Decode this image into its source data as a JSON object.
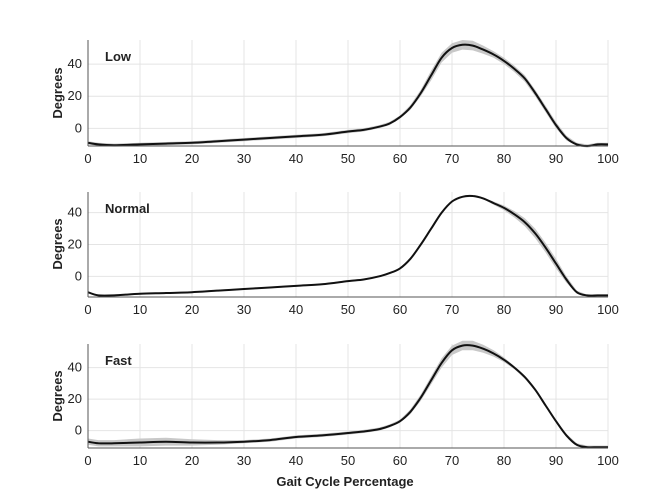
{
  "figure": {
    "xlabel": "Gait Cycle Percentage"
  },
  "chart_data": [
    {
      "type": "line",
      "title": "Low",
      "xlabel": "",
      "ylabel": "Degrees",
      "xlim": [
        0,
        100
      ],
      "ylim": [
        -11,
        55
      ],
      "grid": true,
      "xticks": [
        0,
        10,
        20,
        30,
        40,
        50,
        60,
        70,
        80,
        90,
        100
      ],
      "yticks": [
        0,
        20,
        40
      ],
      "series": [
        {
          "x": [
            0,
            2,
            5,
            10,
            15,
            20,
            25,
            30,
            35,
            40,
            45,
            50,
            53,
            56,
            58,
            60,
            62,
            64,
            66,
            68,
            70,
            72,
            74,
            76,
            78,
            80,
            82,
            84,
            86,
            88,
            90,
            92,
            94,
            96,
            98,
            100
          ],
          "y": [
            -9,
            -10,
            -10.5,
            -10,
            -9.5,
            -9,
            -8,
            -7,
            -6,
            -5,
            -4,
            -2,
            -1,
            1,
            3,
            7,
            13,
            22,
            33,
            44,
            50,
            52,
            51.5,
            49,
            46,
            42,
            37,
            31,
            22,
            12,
            2,
            -6,
            -10,
            -11,
            -10,
            -10
          ],
          "band": [
            1,
            1,
            1,
            1,
            1,
            1,
            1,
            1,
            1,
            1,
            1,
            1,
            1,
            1,
            1,
            1,
            1.5,
            2,
            3,
            3,
            3,
            3,
            3,
            2.5,
            2,
            2,
            2,
            2,
            2,
            2,
            2,
            1.5,
            1,
            1,
            1,
            1
          ]
        }
      ]
    },
    {
      "type": "line",
      "title": "Normal",
      "xlabel": "",
      "ylabel": "Degrees",
      "xlim": [
        0,
        100
      ],
      "ylim": [
        -13,
        53
      ],
      "grid": true,
      "xticks": [
        0,
        10,
        20,
        30,
        40,
        50,
        60,
        70,
        80,
        90,
        100
      ],
      "yticks": [
        0,
        20,
        40
      ],
      "series": [
        {
          "x": [
            0,
            2,
            5,
            10,
            15,
            20,
            25,
            30,
            35,
            40,
            45,
            50,
            53,
            56,
            58,
            60,
            62,
            64,
            66,
            68,
            70,
            72,
            74,
            76,
            78,
            80,
            82,
            84,
            86,
            88,
            90,
            92,
            94,
            96,
            98,
            100
          ],
          "y": [
            -10,
            -12,
            -12,
            -11,
            -10.5,
            -10,
            -9,
            -8,
            -7,
            -6,
            -5,
            -3,
            -2,
            0,
            2,
            5,
            11,
            20,
            30,
            40,
            47,
            50,
            50.5,
            49,
            46,
            43,
            39,
            34,
            27,
            18,
            8,
            -2,
            -10,
            -12,
            -12,
            -12
          ],
          "band": [
            0.5,
            0.5,
            0.5,
            0.5,
            0.5,
            0.5,
            0.5,
            0.5,
            0.5,
            0.5,
            0.5,
            0.5,
            0.5,
            0.5,
            0.5,
            0.5,
            0.5,
            0.5,
            0.5,
            0.5,
            0.5,
            0.5,
            0.5,
            0.5,
            1,
            1.5,
            2,
            2.5,
            3,
            3,
            3,
            2,
            1,
            0.5,
            0.5,
            0.5
          ]
        }
      ]
    },
    {
      "type": "line",
      "title": "Fast",
      "xlabel": "",
      "ylabel": "Degrees",
      "xlim": [
        0,
        100
      ],
      "ylim": [
        -11,
        55
      ],
      "grid": true,
      "xticks": [
        0,
        10,
        20,
        30,
        40,
        50,
        60,
        70,
        80,
        90,
        100
      ],
      "yticks": [
        0,
        20,
        40
      ],
      "series": [
        {
          "x": [
            0,
            2,
            5,
            10,
            15,
            20,
            25,
            30,
            35,
            40,
            45,
            50,
            53,
            56,
            58,
            60,
            62,
            64,
            66,
            68,
            70,
            72,
            74,
            76,
            78,
            80,
            82,
            84,
            86,
            88,
            90,
            92,
            94,
            96,
            98,
            100
          ],
          "y": [
            -7,
            -8,
            -8,
            -7.5,
            -7,
            -7.5,
            -7.5,
            -7,
            -6,
            -4,
            -3,
            -1.5,
            -0.5,
            1,
            3,
            6,
            12,
            21,
            32,
            43,
            51,
            54,
            54,
            52,
            49,
            45,
            40,
            34,
            26,
            16,
            6,
            -3,
            -9,
            -10.5,
            -10.5,
            -10.5
          ],
          "band": [
            2,
            2,
            2,
            2.5,
            2.5,
            2,
            1.5,
            1,
            1,
            1,
            1,
            1,
            1,
            1,
            1,
            1,
            1.5,
            2,
            2.5,
            3,
            3,
            3,
            3,
            2.5,
            2,
            1.5,
            1,
            1,
            1,
            1,
            1,
            1,
            1,
            1,
            1,
            1
          ]
        }
      ]
    }
  ]
}
